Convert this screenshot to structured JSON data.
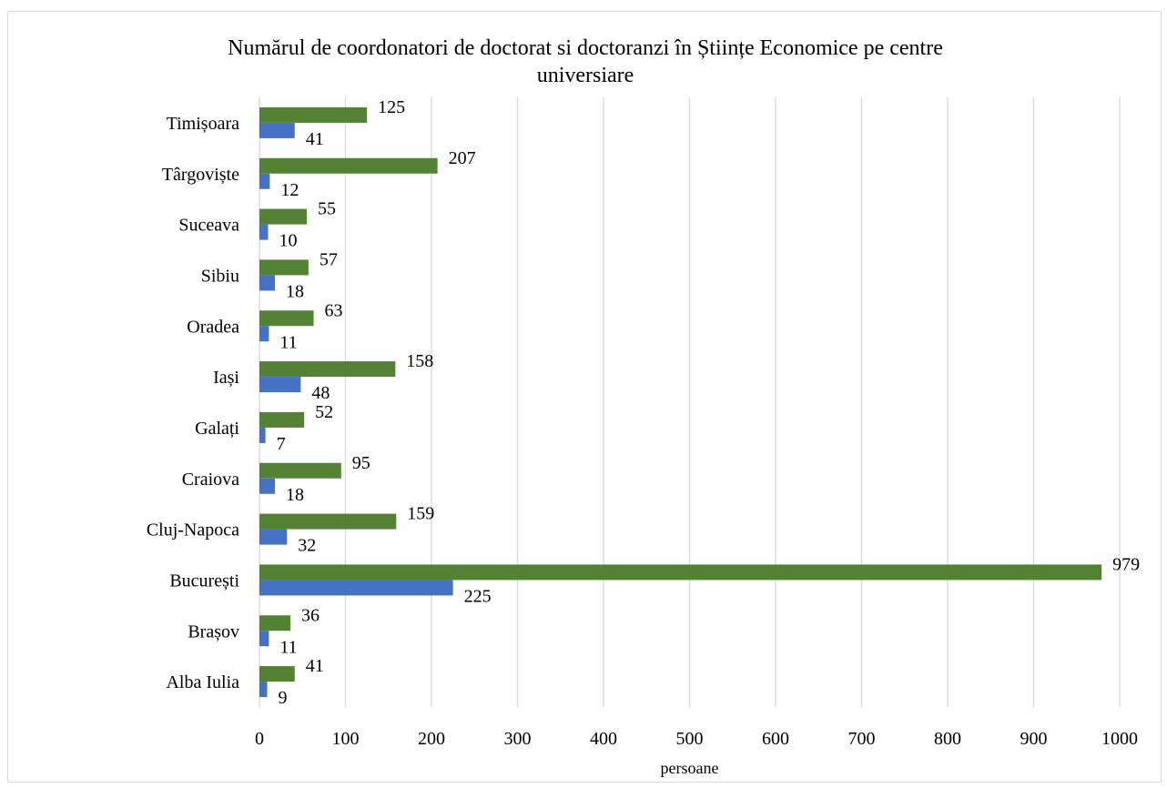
{
  "chart_data": {
    "type": "bar",
    "orientation": "horizontal",
    "title": "Numărul de coordonatori de doctorat si doctoranzi în Științe Economice pe centre universiare",
    "title_lines": [
      "Numărul de coordonatori de doctorat si doctoranzi în Științe Economice pe centre",
      "universiare"
    ],
    "xlabel": "persoane",
    "ylabel": "",
    "xlim": [
      0,
      1000
    ],
    "x_ticks": [
      "0",
      "100",
      "200",
      "300",
      "400",
      "500",
      "600",
      "700",
      "800",
      "900",
      "1000"
    ],
    "grid": "vertical",
    "legend": "none",
    "categories": [
      "Alba Iulia",
      "Brașov",
      "București",
      "Cluj-Napoca",
      "Craiova",
      "Galați",
      "Iași",
      "Oradea",
      "Sibiu",
      "Suceava",
      "Târgoviște",
      "Timișoara"
    ],
    "series": [
      {
        "color": "#4472c4",
        "values": [
          9,
          11,
          225,
          32,
          18,
          7,
          48,
          11,
          18,
          10,
          12,
          41
        ]
      },
      {
        "color": "#548235",
        "values": [
          41,
          36,
          979,
          159,
          95,
          52,
          158,
          63,
          57,
          55,
          207,
          125
        ]
      }
    ]
  }
}
